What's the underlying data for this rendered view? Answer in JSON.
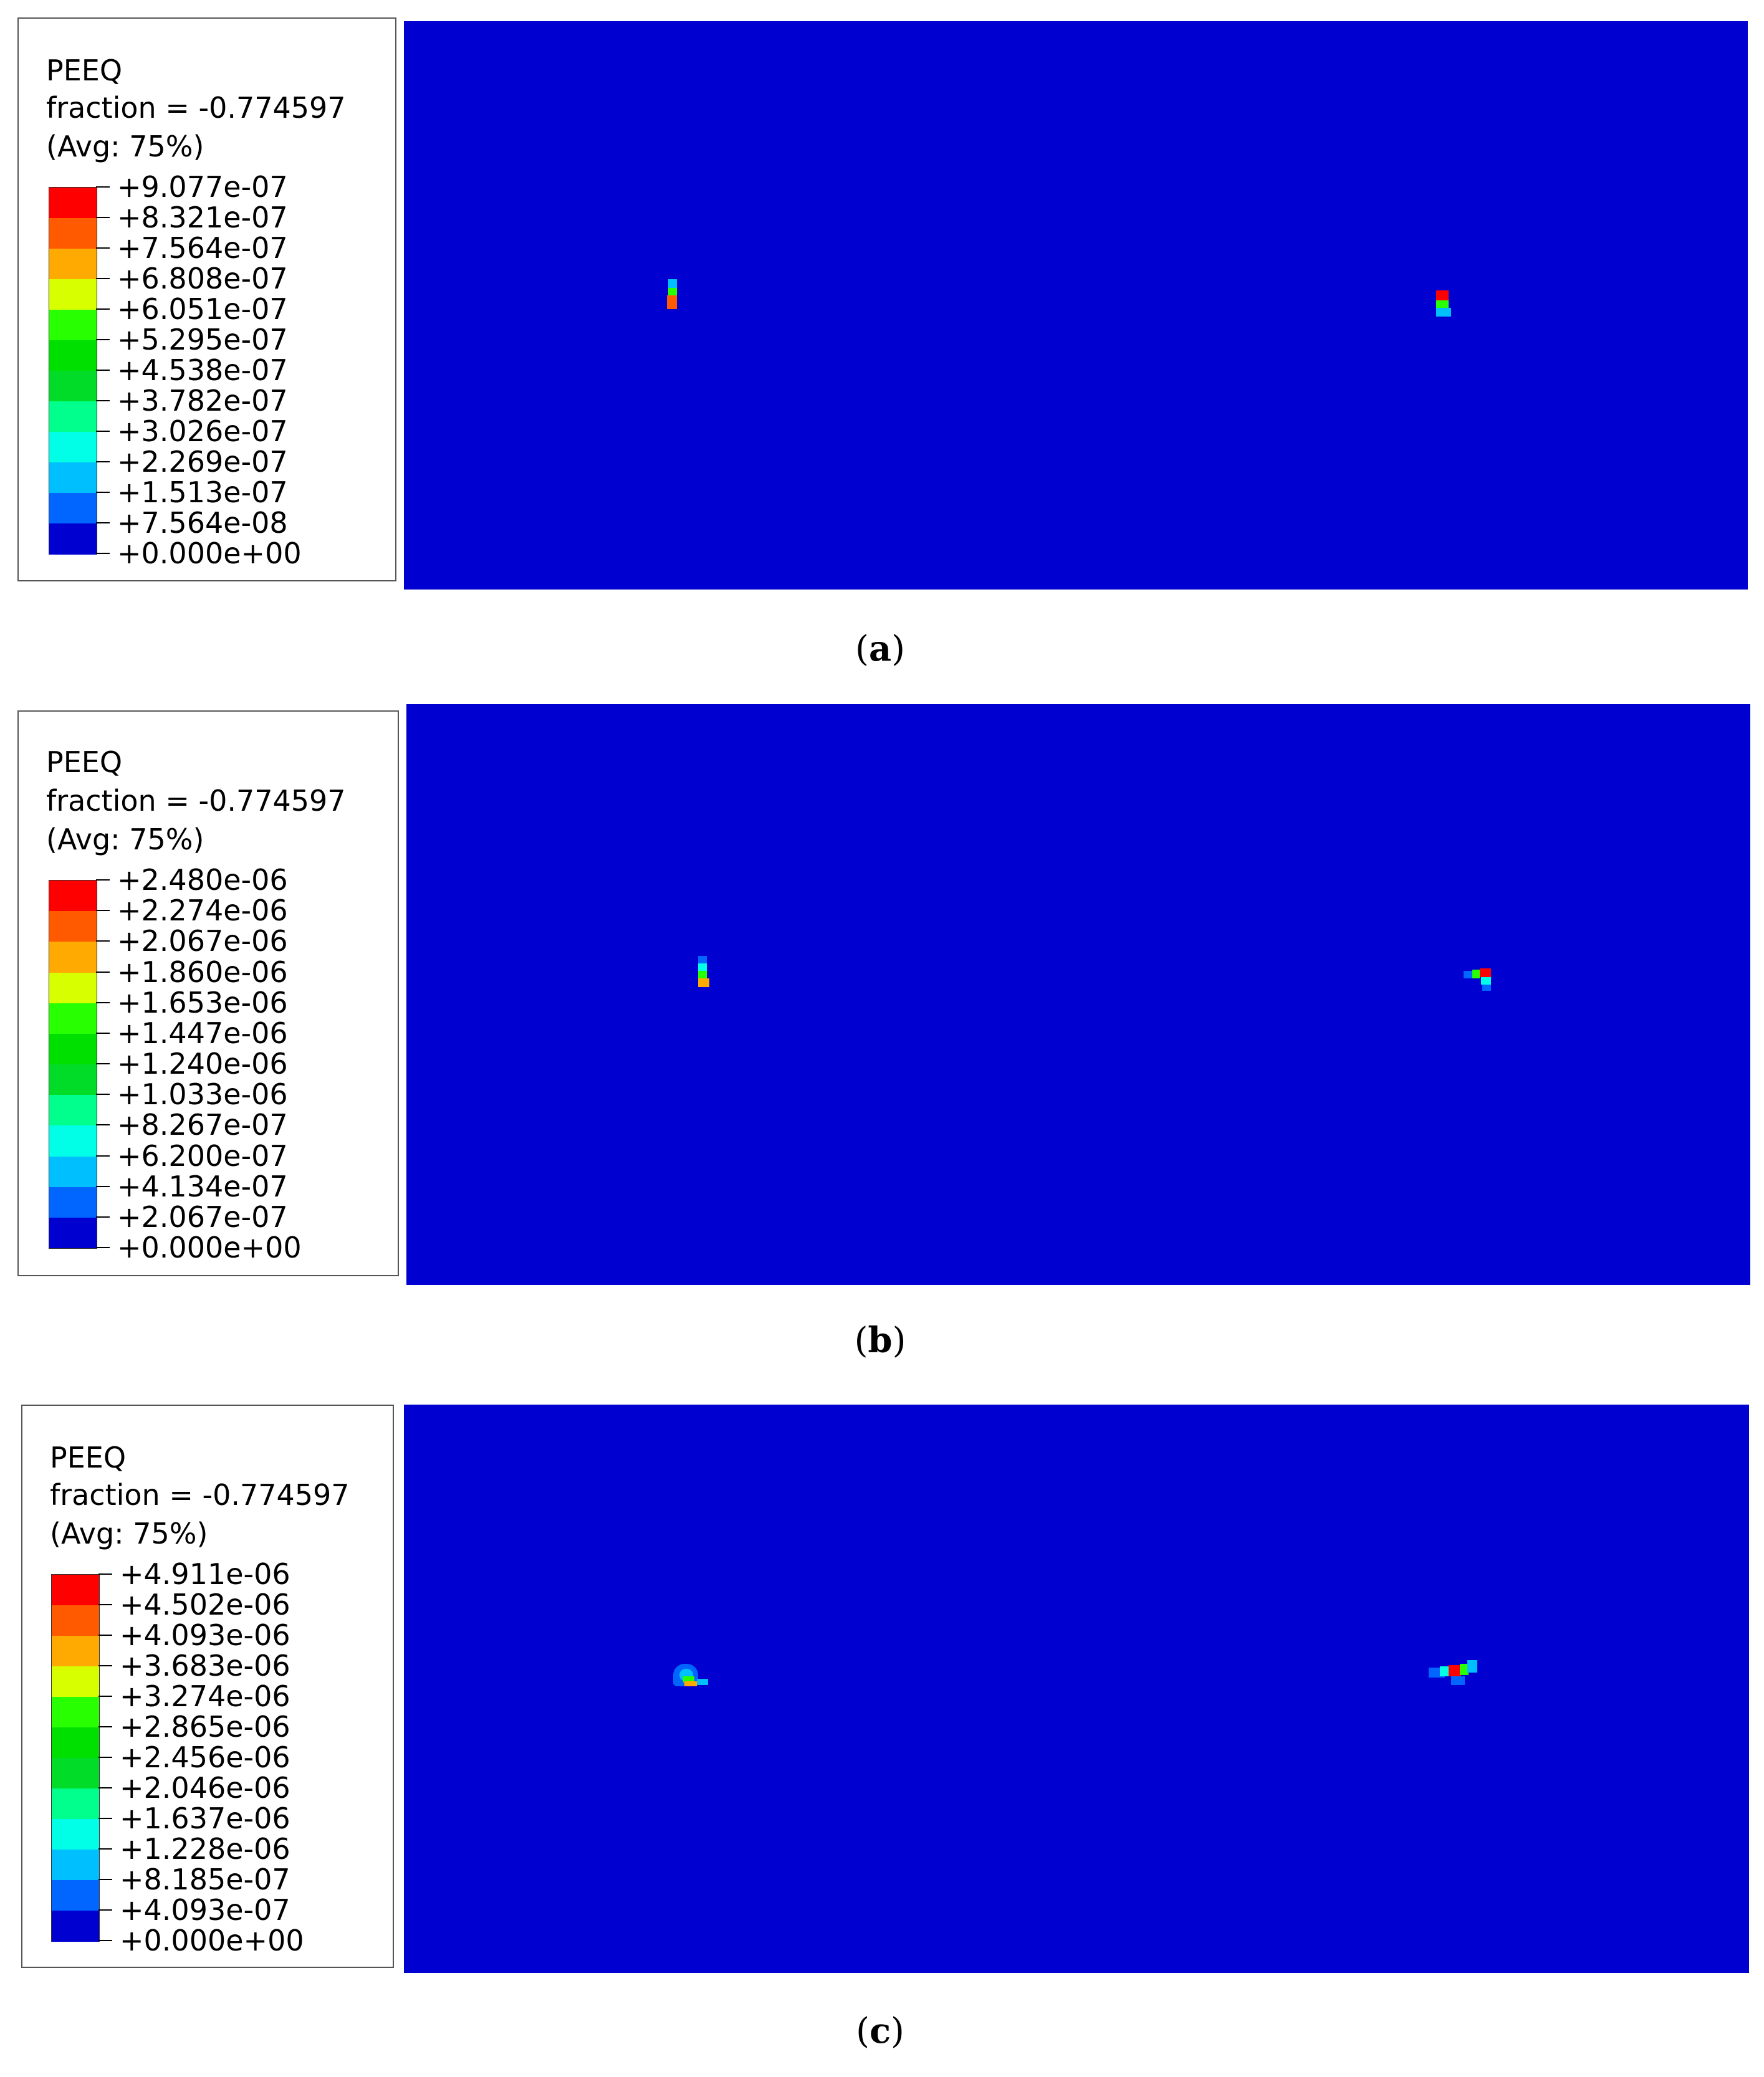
{
  "colors": [
    "#ff0000",
    "#ff5a00",
    "#ffaa00",
    "#d7ff00",
    "#28ff00",
    "#00e000",
    "#00dc28",
    "#00ff8c",
    "#00ffe6",
    "#00bfff",
    "#0066ff",
    "#0000d0"
  ],
  "panels": [
    {
      "id": "a",
      "caption": "a",
      "legend": {
        "title": "PEEQ",
        "fraction": "fraction = -0.774597",
        "avg": "(Avg: 75%)",
        "values": [
          "+9.077e-07",
          "+8.321e-07",
          "+7.564e-07",
          "+6.808e-07",
          "+6.051e-07",
          "+5.295e-07",
          "+4.538e-07",
          "+3.782e-07",
          "+3.026e-07",
          "+2.269e-07",
          "+1.513e-07",
          "+7.564e-08",
          "+0.000e+00"
        ]
      }
    },
    {
      "id": "b",
      "caption": "b",
      "legend": {
        "title": "PEEQ",
        "fraction": "fraction = -0.774597",
        "avg": "(Avg: 75%)",
        "values": [
          "+2.480e-06",
          "+2.274e-06",
          "+2.067e-06",
          "+1.860e-06",
          "+1.653e-06",
          "+1.447e-06",
          "+1.240e-06",
          "+1.033e-06",
          "+8.267e-07",
          "+6.200e-07",
          "+4.134e-07",
          "+2.067e-07",
          "+0.000e+00"
        ]
      }
    },
    {
      "id": "c",
      "caption": "c",
      "legend": {
        "title": "PEEQ",
        "fraction": "fraction = -0.774597",
        "avg": "(Avg: 75%)",
        "values": [
          "+4.911e-06",
          "+4.502e-06",
          "+4.093e-06",
          "+3.683e-06",
          "+3.274e-06",
          "+2.865e-06",
          "+2.456e-06",
          "+2.046e-06",
          "+1.637e-06",
          "+1.228e-06",
          "+8.185e-07",
          "+4.093e-07",
          "+0.000e+00"
        ]
      }
    }
  ]
}
